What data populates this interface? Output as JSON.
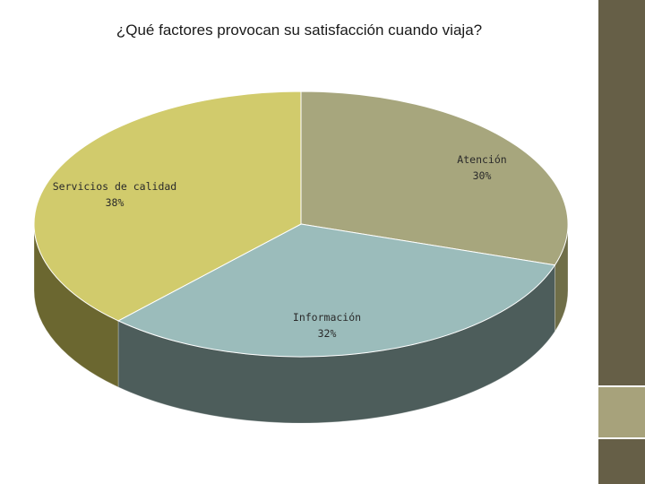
{
  "title": "¿Qué factores provocan su satisfacción cuando viaja?",
  "colors": {
    "sidebar": "#665f47",
    "sidebar_accent": "#a7a27b"
  },
  "chart_data": {
    "type": "pie",
    "three_d": true,
    "slices": [
      {
        "label": "Atención",
        "value": 30,
        "value_label": "30%",
        "color": "#a7a67d",
        "side_color": "#6f6e48"
      },
      {
        "label": "Información",
        "value": 32,
        "value_label": "32%",
        "color": "#9bbcbb",
        "side_color": "#4d5d5b"
      },
      {
        "label": "Servicios de calidad",
        "value": 38,
        "value_label": "38%",
        "color": "#d1cb6c",
        "side_color": "#6b6730"
      }
    ]
  }
}
